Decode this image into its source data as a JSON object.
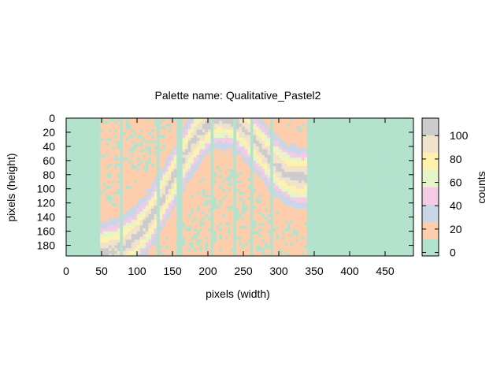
{
  "chart_data": {
    "type": "heatmap",
    "title": "Palette name: Qualitative_Pastel2",
    "xlabel": "pixels (width)",
    "ylabel": "pixels (height)",
    "xlim": [
      0,
      490
    ],
    "ylim": [
      195,
      0
    ],
    "x_ticks": [
      0,
      50,
      100,
      150,
      200,
      250,
      300,
      350,
      400,
      450
    ],
    "y_ticks": [
      0,
      20,
      40,
      60,
      80,
      100,
      120,
      140,
      160,
      180
    ],
    "colorbar": {
      "label": "counts",
      "range": [
        -3,
        115
      ],
      "ticks": [
        0,
        20,
        40,
        60,
        80,
        100
      ]
    },
    "palette": [
      "#b3e2cd",
      "#fdcdac",
      "#cbd5e8",
      "#f4cae4",
      "#e6f5c9",
      "#fff2ae",
      "#f1e2cc",
      "#cccccc"
    ],
    "band": {
      "center_width_range": [
        55,
        330
      ],
      "peak_counts": 90,
      "dark_stripes_x": [
        78,
        130,
        160,
        205,
        237,
        262,
        290
      ]
    }
  }
}
